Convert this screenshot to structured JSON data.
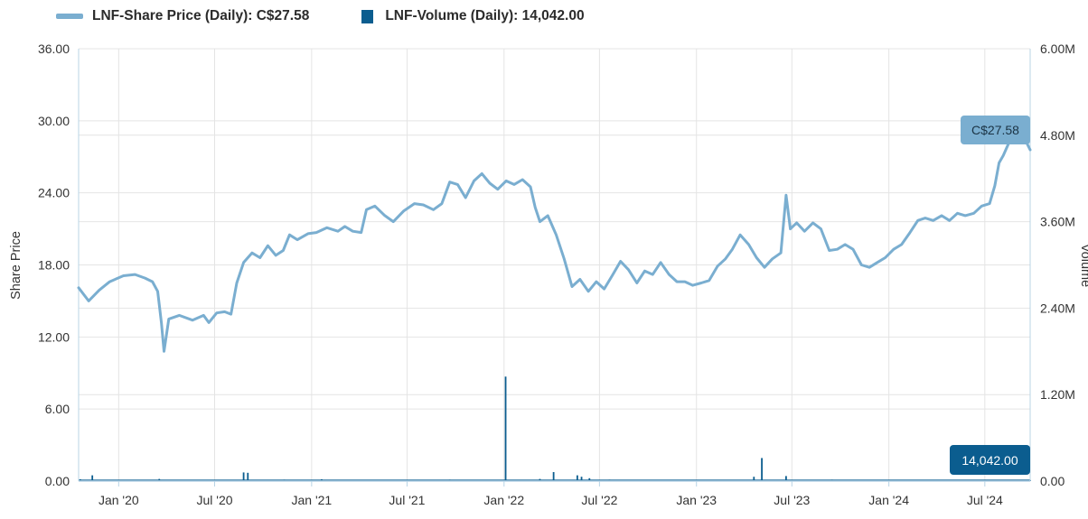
{
  "legend": {
    "price_label": "LNF-Share Price (Daily): C$27.58",
    "volume_label": "LNF-Volume (Daily): 14,042.00"
  },
  "badges": {
    "price": "C$27.58",
    "volume": "14,042.00"
  },
  "colors": {
    "price_line": "#7aaed0",
    "volume_bar": "#0b5d8f",
    "price_badge_bg": "#7aaed0",
    "price_badge_text": "#1b3344",
    "volume_badge_bg": "#0b5d8f",
    "volume_badge_text": "#ffffff",
    "grid": "#e4e4e4",
    "axis": "#b8d4e6"
  },
  "chart_data": {
    "type": "line",
    "ylabel": "Share Price",
    "y2label": "Volume",
    "ylim": [
      0,
      36
    ],
    "y2lim": [
      0,
      6000000
    ],
    "grid": true,
    "legend_position": "top-left",
    "yticks": [
      "0.00",
      "6.00",
      "12.00",
      "18.00",
      "24.00",
      "30.00",
      "36.00"
    ],
    "y2ticks": [
      "0.00",
      "1.20M",
      "2.40M",
      "3.60M",
      "4.80M",
      "6.00M"
    ],
    "xticks": [
      {
        "date": "2020-01-01",
        "label": "Jan '20"
      },
      {
        "date": "2020-07-01",
        "label": "Jul '20"
      },
      {
        "date": "2021-01-01",
        "label": "Jan '21"
      },
      {
        "date": "2021-07-01",
        "label": "Jul '21"
      },
      {
        "date": "2022-01-01",
        "label": "Jan '22"
      },
      {
        "date": "2022-07-01",
        "label": "Jul '22"
      },
      {
        "date": "2023-01-01",
        "label": "Jan '23"
      },
      {
        "date": "2023-07-01",
        "label": "Jul '23"
      },
      {
        "date": "2024-01-01",
        "label": "Jan '24"
      },
      {
        "date": "2024-07-01",
        "label": "Jul '24"
      }
    ],
    "xlim": [
      "2019-10-17",
      "2024-09-25"
    ],
    "series": [
      {
        "name": "LNF-Share Price (Daily)",
        "points": [
          [
            "2019-10-17",
            16.1
          ],
          [
            "2019-11-05",
            15.0
          ],
          [
            "2019-11-25",
            15.9
          ],
          [
            "2019-12-15",
            16.6
          ],
          [
            "2020-01-10",
            17.1
          ],
          [
            "2020-02-01",
            17.2
          ],
          [
            "2020-02-20",
            16.9
          ],
          [
            "2020-03-05",
            16.6
          ],
          [
            "2020-03-15",
            15.8
          ],
          [
            "2020-03-22",
            13.2
          ],
          [
            "2020-03-27",
            10.8
          ],
          [
            "2020-04-05",
            13.5
          ],
          [
            "2020-04-25",
            13.8
          ],
          [
            "2020-05-20",
            13.4
          ],
          [
            "2020-06-10",
            13.8
          ],
          [
            "2020-06-20",
            13.2
          ],
          [
            "2020-07-05",
            14.0
          ],
          [
            "2020-07-20",
            14.1
          ],
          [
            "2020-08-01",
            13.9
          ],
          [
            "2020-08-12",
            16.5
          ],
          [
            "2020-08-25",
            18.2
          ],
          [
            "2020-09-10",
            19.0
          ],
          [
            "2020-09-25",
            18.6
          ],
          [
            "2020-10-10",
            19.6
          ],
          [
            "2020-10-25",
            18.8
          ],
          [
            "2020-11-08",
            19.2
          ],
          [
            "2020-11-20",
            20.5
          ],
          [
            "2020-12-05",
            20.1
          ],
          [
            "2020-12-25",
            20.6
          ],
          [
            "2021-01-10",
            20.7
          ],
          [
            "2021-01-30",
            21.1
          ],
          [
            "2021-02-20",
            20.8
          ],
          [
            "2021-03-05",
            21.2
          ],
          [
            "2021-03-20",
            20.8
          ],
          [
            "2021-04-05",
            20.7
          ],
          [
            "2021-04-15",
            22.6
          ],
          [
            "2021-05-01",
            22.9
          ],
          [
            "2021-05-20",
            22.1
          ],
          [
            "2021-06-05",
            21.6
          ],
          [
            "2021-06-25",
            22.5
          ],
          [
            "2021-07-15",
            23.1
          ],
          [
            "2021-08-01",
            23.0
          ],
          [
            "2021-08-20",
            22.6
          ],
          [
            "2021-09-05",
            23.1
          ],
          [
            "2021-09-20",
            24.9
          ],
          [
            "2021-10-05",
            24.7
          ],
          [
            "2021-10-20",
            23.6
          ],
          [
            "2021-11-05",
            25.0
          ],
          [
            "2021-11-20",
            25.6
          ],
          [
            "2021-12-05",
            24.8
          ],
          [
            "2021-12-20",
            24.3
          ],
          [
            "2022-01-05",
            25.0
          ],
          [
            "2022-01-20",
            24.7
          ],
          [
            "2022-02-05",
            25.1
          ],
          [
            "2022-02-20",
            24.5
          ],
          [
            "2022-03-01",
            22.8
          ],
          [
            "2022-03-10",
            21.6
          ],
          [
            "2022-03-25",
            22.1
          ],
          [
            "2022-04-10",
            20.5
          ],
          [
            "2022-04-25",
            18.5
          ],
          [
            "2022-05-10",
            16.2
          ],
          [
            "2022-05-25",
            16.8
          ],
          [
            "2022-06-10",
            15.8
          ],
          [
            "2022-06-25",
            16.6
          ],
          [
            "2022-07-10",
            16.0
          ],
          [
            "2022-07-25",
            17.1
          ],
          [
            "2022-08-10",
            18.3
          ],
          [
            "2022-08-25",
            17.6
          ],
          [
            "2022-09-10",
            16.5
          ],
          [
            "2022-09-25",
            17.5
          ],
          [
            "2022-10-10",
            17.2
          ],
          [
            "2022-10-25",
            18.2
          ],
          [
            "2022-11-10",
            17.2
          ],
          [
            "2022-11-25",
            16.6
          ],
          [
            "2022-12-10",
            16.6
          ],
          [
            "2022-12-25",
            16.3
          ],
          [
            "2023-01-10",
            16.5
          ],
          [
            "2023-01-25",
            16.7
          ],
          [
            "2023-02-10",
            17.9
          ],
          [
            "2023-02-25",
            18.5
          ],
          [
            "2023-03-10",
            19.3
          ],
          [
            "2023-03-25",
            20.5
          ],
          [
            "2023-04-10",
            19.7
          ],
          [
            "2023-04-25",
            18.6
          ],
          [
            "2023-05-10",
            17.8
          ],
          [
            "2023-05-25",
            18.5
          ],
          [
            "2023-06-10",
            19.0
          ],
          [
            "2023-06-20",
            23.8
          ],
          [
            "2023-06-28",
            21.0
          ],
          [
            "2023-07-10",
            21.5
          ],
          [
            "2023-07-25",
            20.8
          ],
          [
            "2023-08-10",
            21.5
          ],
          [
            "2023-08-25",
            21.0
          ],
          [
            "2023-09-10",
            19.2
          ],
          [
            "2023-09-25",
            19.3
          ],
          [
            "2023-10-10",
            19.7
          ],
          [
            "2023-10-25",
            19.3
          ],
          [
            "2023-11-10",
            18.0
          ],
          [
            "2023-11-25",
            17.8
          ],
          [
            "2023-12-10",
            18.2
          ],
          [
            "2023-12-25",
            18.6
          ],
          [
            "2024-01-10",
            19.3
          ],
          [
            "2024-01-25",
            19.7
          ],
          [
            "2024-02-10",
            20.7
          ],
          [
            "2024-02-25",
            21.7
          ],
          [
            "2024-03-10",
            21.9
          ],
          [
            "2024-03-25",
            21.7
          ],
          [
            "2024-04-10",
            22.1
          ],
          [
            "2024-04-25",
            21.7
          ],
          [
            "2024-05-10",
            22.3
          ],
          [
            "2024-05-25",
            22.1
          ],
          [
            "2024-06-10",
            22.3
          ],
          [
            "2024-06-25",
            22.9
          ],
          [
            "2024-07-10",
            23.1
          ],
          [
            "2024-07-20",
            24.6
          ],
          [
            "2024-07-28",
            26.5
          ],
          [
            "2024-08-05",
            27.1
          ],
          [
            "2024-08-20",
            28.6
          ],
          [
            "2024-09-05",
            29.3
          ],
          [
            "2024-09-18",
            28.2
          ],
          [
            "2024-09-25",
            27.58
          ]
        ]
      },
      {
        "name": "LNF-Volume (Daily)",
        "points": [
          [
            "2019-10-20",
            25000
          ],
          [
            "2019-11-12",
            80000
          ],
          [
            "2020-03-18",
            30000
          ],
          [
            "2020-08-25",
            120000
          ],
          [
            "2020-09-02",
            115000
          ],
          [
            "2020-11-10",
            20000
          ],
          [
            "2021-01-20",
            25000
          ],
          [
            "2021-05-15",
            18000
          ],
          [
            "2021-09-20",
            20000
          ],
          [
            "2022-01-04",
            1450000
          ],
          [
            "2022-03-10",
            30000
          ],
          [
            "2022-04-05",
            125000
          ],
          [
            "2022-05-20",
            80000
          ],
          [
            "2022-05-28",
            60000
          ],
          [
            "2022-06-12",
            40000
          ],
          [
            "2022-07-20",
            20000
          ],
          [
            "2022-09-15",
            15000
          ],
          [
            "2022-12-01",
            18000
          ],
          [
            "2023-04-20",
            60000
          ],
          [
            "2023-05-05",
            320000
          ],
          [
            "2023-06-20",
            70000
          ],
          [
            "2023-09-15",
            20000
          ],
          [
            "2023-12-20",
            18000
          ],
          [
            "2024-03-15",
            15000
          ],
          [
            "2024-06-20",
            12000
          ],
          [
            "2024-09-25",
            14042
          ]
        ]
      }
    ]
  }
}
